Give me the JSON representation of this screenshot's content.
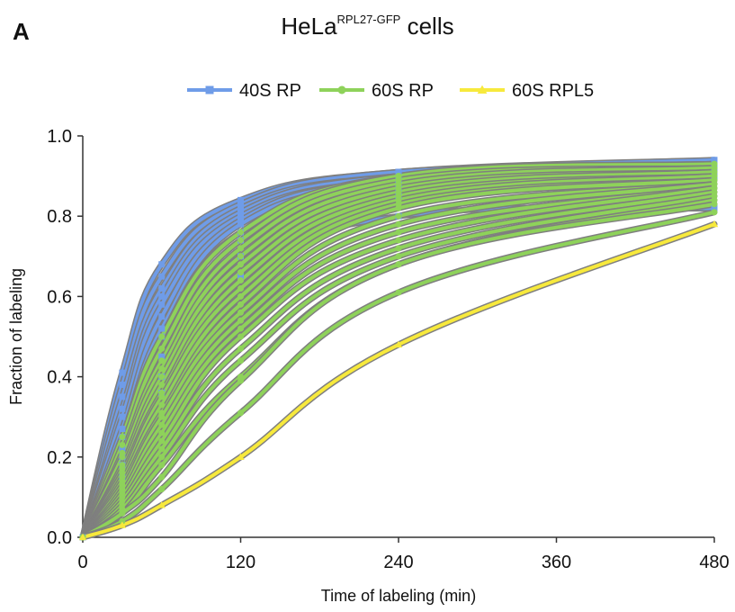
{
  "panel_label": "A",
  "title": {
    "main": "HeLa",
    "sup": "RPL27-GFP",
    "suffix": "cells"
  },
  "colors": {
    "rp40s": "#6f9ce8",
    "rp60s": "#8ed25a",
    "rpl5": "#f7e93c",
    "edge": "#7f7f7f",
    "axis": "#333333"
  },
  "chart_data": {
    "type": "line",
    "title": "HeLaRPL27-GFP cells",
    "xlabel": "Time of labeling (min)",
    "ylabel": "Fraction of labeling",
    "x": [
      0,
      30,
      60,
      120,
      240,
      480
    ],
    "xticks": [
      0,
      120,
      240,
      360,
      480
    ],
    "yticks": [
      "0.0",
      "0.2",
      "0.4",
      "0.6",
      "0.8",
      "1.0"
    ],
    "xlim": [
      0,
      480
    ],
    "ylim": [
      0,
      1.0
    ],
    "grid": false,
    "legend_position": "top",
    "legend": [
      "40S RP",
      "60S RP",
      "60S RPL5"
    ],
    "series": [
      {
        "group": "40S RP",
        "marker": "square",
        "values": [
          0,
          0.41,
          0.68,
          0.84,
          0.91,
          0.94
        ]
      },
      {
        "group": "40S RP",
        "marker": "square",
        "values": [
          0,
          0.38,
          0.65,
          0.83,
          0.91,
          0.93
        ]
      },
      {
        "group": "40S RP",
        "marker": "square",
        "values": [
          0,
          0.35,
          0.62,
          0.82,
          0.9,
          0.93
        ]
      },
      {
        "group": "40S RP",
        "marker": "square",
        "values": [
          0,
          0.32,
          0.6,
          0.81,
          0.9,
          0.93
        ]
      },
      {
        "group": "40S RP",
        "marker": "square",
        "values": [
          0,
          0.3,
          0.58,
          0.8,
          0.89,
          0.92
        ]
      },
      {
        "group": "40S RP",
        "marker": "square",
        "values": [
          0,
          0.27,
          0.55,
          0.79,
          0.89,
          0.92
        ]
      },
      {
        "group": "40S RP",
        "marker": "square",
        "values": [
          0,
          0.25,
          0.52,
          0.78,
          0.88,
          0.92
        ]
      },
      {
        "group": "40S RP",
        "marker": "square",
        "values": [
          0,
          0.22,
          0.5,
          0.76,
          0.87,
          0.91
        ]
      },
      {
        "group": "40S RP",
        "marker": "square",
        "values": [
          0,
          0.2,
          0.45,
          0.74,
          0.86,
          0.91
        ]
      },
      {
        "group": "40S RP",
        "marker": "square",
        "values": [
          0,
          0.18,
          0.4,
          0.7,
          0.85,
          0.9
        ]
      },
      {
        "group": "40S RP",
        "marker": "square",
        "values": [
          0,
          0.15,
          0.36,
          0.65,
          0.8,
          0.82
        ]
      },
      {
        "group": "60S RP",
        "marker": "circle",
        "values": [
          0,
          0.25,
          0.5,
          0.76,
          0.9,
          0.93
        ]
      },
      {
        "group": "60S RP",
        "marker": "circle",
        "values": [
          0,
          0.23,
          0.47,
          0.74,
          0.9,
          0.93
        ]
      },
      {
        "group": "60S RP",
        "marker": "circle",
        "values": [
          0,
          0.21,
          0.44,
          0.72,
          0.89,
          0.92
        ]
      },
      {
        "group": "60S RP",
        "marker": "circle",
        "values": [
          0,
          0.2,
          0.42,
          0.7,
          0.88,
          0.92
        ]
      },
      {
        "group": "60S RP",
        "marker": "circle",
        "values": [
          0,
          0.18,
          0.4,
          0.68,
          0.87,
          0.91
        ]
      },
      {
        "group": "60S RP",
        "marker": "circle",
        "values": [
          0,
          0.17,
          0.38,
          0.66,
          0.86,
          0.91
        ]
      },
      {
        "group": "60S RP",
        "marker": "circle",
        "values": [
          0,
          0.16,
          0.36,
          0.64,
          0.85,
          0.9
        ]
      },
      {
        "group": "60S RP",
        "marker": "circle",
        "values": [
          0,
          0.15,
          0.35,
          0.62,
          0.84,
          0.9
        ]
      },
      {
        "group": "60S RP",
        "marker": "circle",
        "values": [
          0,
          0.14,
          0.33,
          0.6,
          0.83,
          0.89
        ]
      },
      {
        "group": "60S RP",
        "marker": "circle",
        "values": [
          0,
          0.13,
          0.31,
          0.58,
          0.82,
          0.89
        ]
      },
      {
        "group": "60S RP",
        "marker": "circle",
        "values": [
          0,
          0.12,
          0.3,
          0.56,
          0.8,
          0.88
        ]
      },
      {
        "group": "60S RP",
        "marker": "circle",
        "values": [
          0,
          0.11,
          0.28,
          0.54,
          0.78,
          0.88
        ]
      },
      {
        "group": "60S RP",
        "marker": "circle",
        "values": [
          0,
          0.1,
          0.26,
          0.52,
          0.76,
          0.87
        ]
      },
      {
        "group": "60S RP",
        "marker": "circle",
        "values": [
          0,
          0.09,
          0.24,
          0.5,
          0.74,
          0.87
        ]
      },
      {
        "group": "60S RP",
        "marker": "circle",
        "values": [
          0,
          0.08,
          0.22,
          0.47,
          0.72,
          0.86
        ]
      },
      {
        "group": "60S RP",
        "marker": "circle",
        "values": [
          0,
          0.07,
          0.2,
          0.44,
          0.7,
          0.85
        ]
      },
      {
        "group": "60S RP",
        "marker": "circle",
        "values": [
          0,
          0.06,
          0.18,
          0.4,
          0.68,
          0.84
        ]
      },
      {
        "group": "60S RP",
        "marker": "circle",
        "values": [
          0,
          0.06,
          0.15,
          0.39,
          0.68,
          0.83
        ]
      },
      {
        "group": "60S RP",
        "marker": "circle",
        "values": [
          0,
          0.04,
          0.12,
          0.31,
          0.61,
          0.81
        ]
      },
      {
        "group": "60S RPL5",
        "marker": "triangle",
        "values": [
          0,
          0.03,
          0.08,
          0.2,
          0.48,
          0.78
        ]
      }
    ]
  }
}
